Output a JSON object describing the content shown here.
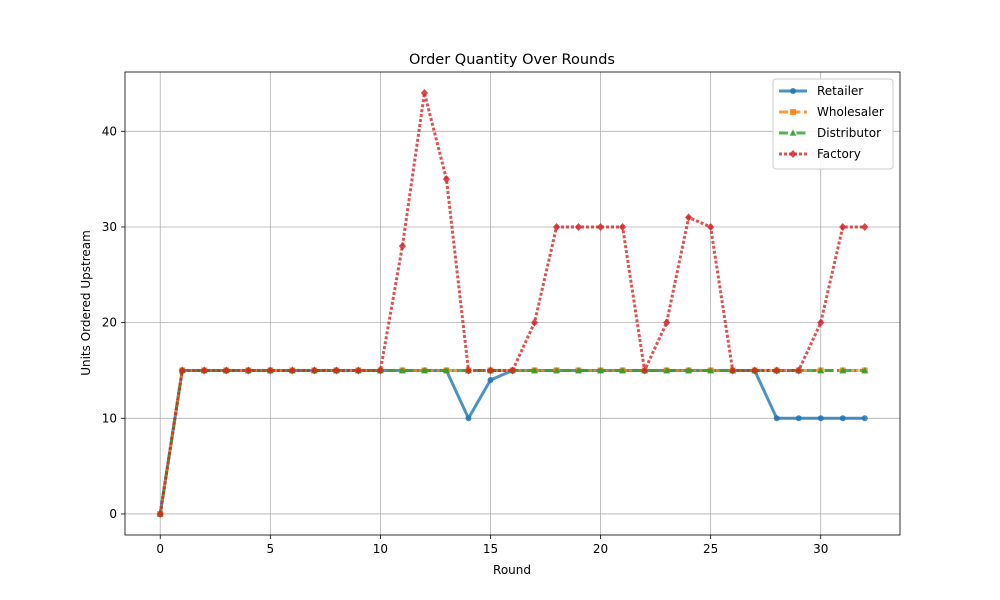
{
  "chart_data": {
    "type": "line",
    "title": "Order Quantity Over Rounds",
    "xlabel": "Round",
    "ylabel": "Units Ordered Upstream",
    "xlim": [
      -1.6,
      33.6
    ],
    "ylim": [
      -2.2,
      46.2
    ],
    "xticks": [
      0,
      5,
      10,
      15,
      20,
      25,
      30
    ],
    "yticks": [
      0,
      10,
      20,
      30,
      40
    ],
    "grid": true,
    "legend_position": "top-right",
    "x": [
      0,
      1,
      2,
      3,
      4,
      5,
      6,
      7,
      8,
      9,
      10,
      11,
      12,
      13,
      14,
      15,
      16,
      17,
      18,
      19,
      20,
      21,
      22,
      23,
      24,
      25,
      26,
      27,
      28,
      29,
      30,
      31,
      32
    ],
    "series": [
      {
        "name": "Retailer",
        "color": "#1f77b4",
        "marker": "circle",
        "linestyle": "solid",
        "values": [
          0,
          15,
          15,
          15,
          15,
          15,
          15,
          15,
          15,
          15,
          15,
          15,
          15,
          15,
          10,
          14,
          15,
          15,
          15,
          15,
          15,
          15,
          15,
          15,
          15,
          15,
          15,
          15,
          10,
          10,
          10,
          10,
          10
        ]
      },
      {
        "name": "Wholesaler",
        "color": "#ff7f0e",
        "marker": "square",
        "linestyle": "dashed",
        "values": [
          0,
          15,
          15,
          15,
          15,
          15,
          15,
          15,
          15,
          15,
          15,
          15,
          15,
          15,
          15,
          15,
          15,
          15,
          15,
          15,
          15,
          15,
          15,
          15,
          15,
          15,
          15,
          15,
          15,
          15,
          15,
          15,
          15
        ]
      },
      {
        "name": "Distributor",
        "color": "#2ca02c",
        "marker": "triangle",
        "linestyle": "dashdot",
        "values": [
          0,
          15,
          15,
          15,
          15,
          15,
          15,
          15,
          15,
          15,
          15,
          15,
          15,
          15,
          15,
          15,
          15,
          15,
          15,
          15,
          15,
          15,
          15,
          15,
          15,
          15,
          15,
          15,
          15,
          15,
          15,
          15,
          15
        ]
      },
      {
        "name": "Factory",
        "color": "#d62728",
        "marker": "diamond",
        "linestyle": "dotted",
        "values": [
          0,
          15,
          15,
          15,
          15,
          15,
          15,
          15,
          15,
          15,
          15,
          28,
          44,
          35,
          15,
          15,
          15,
          20,
          30,
          30,
          30,
          30,
          15,
          20,
          31,
          30,
          15,
          15,
          15,
          15,
          20,
          30,
          30
        ]
      }
    ]
  }
}
